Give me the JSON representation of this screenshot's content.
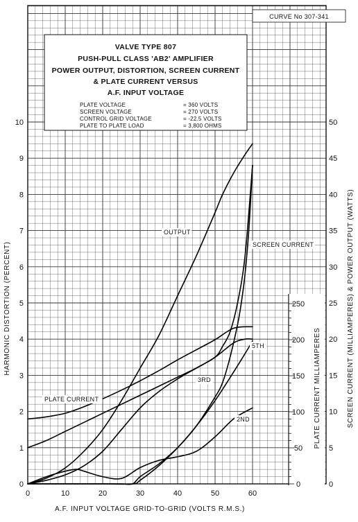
{
  "chart_data": {
    "type": "line",
    "curve_number": "CURVE No 307-341",
    "title_lines": [
      "VALVE TYPE 807",
      "PUSH-PULL CLASS 'AB2' AMPLIFIER",
      "POWER OUTPUT, DISTORTION, SCREEN CURRENT",
      "& PLATE CURRENT VERSUS",
      "A.F. INPUT VOLTAGE"
    ],
    "conditions": [
      {
        "label": "PLATE VOLTAGE",
        "value": "= 360 VOLTS"
      },
      {
        "label": "SCREEN VOLTAGE",
        "value": "= 270 VOLTS"
      },
      {
        "label": "CONTROL GRID VOLTAGE",
        "value": "= -22.5 VOLTS"
      },
      {
        "label": "PLATE TO PLATE LOAD",
        "value": "= 3,800 OHMS"
      }
    ],
    "xlabel": "A.F. INPUT VOLTAGE GRID-TO-GRID (VOLTS R.M.S.)",
    "ylabel_left": "HARMONIC DISTORTION (PERCENT)",
    "ylabel_right": "SCREEN CURRENT (MILLIAMPERES) & POWER OUTPUT (WATTS)",
    "ylabel_plate": "PLATE CURRENT MILLIAMPERES",
    "xlim": [
      0,
      60
    ],
    "ylim_left": [
      0,
      10
    ],
    "ylim_right": [
      0,
      50
    ],
    "ylim_plate": [
      0,
      250
    ],
    "x_ticks": [
      "0",
      "10",
      "20",
      "30",
      "40",
      "50",
      "60"
    ],
    "y_left_ticks": [
      "0",
      "1",
      "2",
      "3",
      "4",
      "5",
      "6",
      "7",
      "8",
      "9",
      "10"
    ],
    "y_right_ticks": [
      "0",
      "5",
      "10",
      "15",
      "20",
      "25",
      "30",
      "35",
      "40",
      "45",
      "50"
    ],
    "y_plate_ticks": [
      "0",
      "50",
      "100",
      "150",
      "200",
      "250"
    ],
    "grid": true,
    "series": [
      {
        "name": "OUTPUT",
        "axis": "right",
        "x": [
          0,
          5,
          10,
          15,
          20,
          25,
          30,
          35,
          40,
          45,
          50,
          52,
          55,
          58,
          60
        ],
        "y": [
          0,
          0.8,
          2.2,
          4.5,
          7.5,
          11.5,
          16,
          20.5,
          26,
          31.5,
          37.5,
          40,
          43,
          45.5,
          47
        ]
      },
      {
        "name": "SCREEN CURRENT",
        "axis": "right",
        "x": [
          0,
          10,
          20,
          28,
          30,
          35,
          40,
          45,
          50,
          52,
          54,
          56,
          57,
          58,
          59,
          60
        ],
        "y": [
          0,
          0,
          0,
          0,
          0.5,
          2.5,
          5,
          8,
          12,
          14,
          17.5,
          22,
          25,
          29,
          35,
          44
        ]
      },
      {
        "name": "PLATE CURRENT",
        "axis": "plate",
        "x": [
          0,
          5,
          10,
          15,
          20,
          25,
          30,
          35,
          40,
          45,
          50,
          55,
          60
        ],
        "y": [
          90,
          93,
          98,
          107,
          118,
          130,
          143,
          157,
          172,
          186,
          200,
          216,
          218
        ]
      },
      {
        "name": "5TH",
        "axis": "left",
        "x": [
          0,
          5,
          10,
          15,
          20,
          25,
          30,
          35,
          40,
          45,
          50,
          55,
          58,
          60
        ],
        "y": [
          1.0,
          1.2,
          1.45,
          1.7,
          1.95,
          2.2,
          2.45,
          2.7,
          2.95,
          3.2,
          3.5,
          3.9,
          4.0,
          4.0
        ]
      },
      {
        "name": "3RD",
        "axis": "left",
        "x": [
          0,
          5,
          10,
          15,
          20,
          25,
          30,
          35,
          40,
          45,
          50,
          52,
          54,
          56,
          58,
          60
        ],
        "y": [
          0,
          0.1,
          0.25,
          0.5,
          0.9,
          1.5,
          2.1,
          2.55,
          2.9,
          3.2,
          3.5,
          3.8,
          4.2,
          5.0,
          6.3,
          8.8
        ]
      },
      {
        "name": "2ND",
        "axis": "left",
        "x": [
          0,
          5,
          10,
          13,
          15,
          20,
          25,
          30,
          35,
          40,
          45,
          50,
          55,
          60
        ],
        "y": [
          0,
          0.2,
          0.35,
          0.4,
          0.35,
          0.2,
          0.15,
          0.45,
          0.65,
          0.75,
          0.9,
          1.3,
          1.8,
          2.1
        ]
      },
      {
        "name": "",
        "axis": "left",
        "x": [
          0,
          10,
          20,
          25,
          28,
          30,
          35,
          40,
          45,
          50,
          55,
          58,
          60
        ],
        "y": [
          0,
          0,
          0,
          0,
          0,
          0.2,
          0.55,
          1.0,
          1.6,
          2.3,
          3.1,
          3.6,
          3.95
        ]
      }
    ],
    "series_labels": [
      {
        "series": "OUTPUT",
        "text": "OUTPUT"
      },
      {
        "series": "SCREEN CURRENT",
        "text": "SCREEN CURRENT"
      },
      {
        "series": "PLATE CURRENT",
        "text": "PLATE CURRENT"
      },
      {
        "series": "5TH",
        "text": "5TH"
      },
      {
        "series": "3RD",
        "text": "3RD"
      },
      {
        "series": "2ND",
        "text": "2ND"
      }
    ]
  }
}
